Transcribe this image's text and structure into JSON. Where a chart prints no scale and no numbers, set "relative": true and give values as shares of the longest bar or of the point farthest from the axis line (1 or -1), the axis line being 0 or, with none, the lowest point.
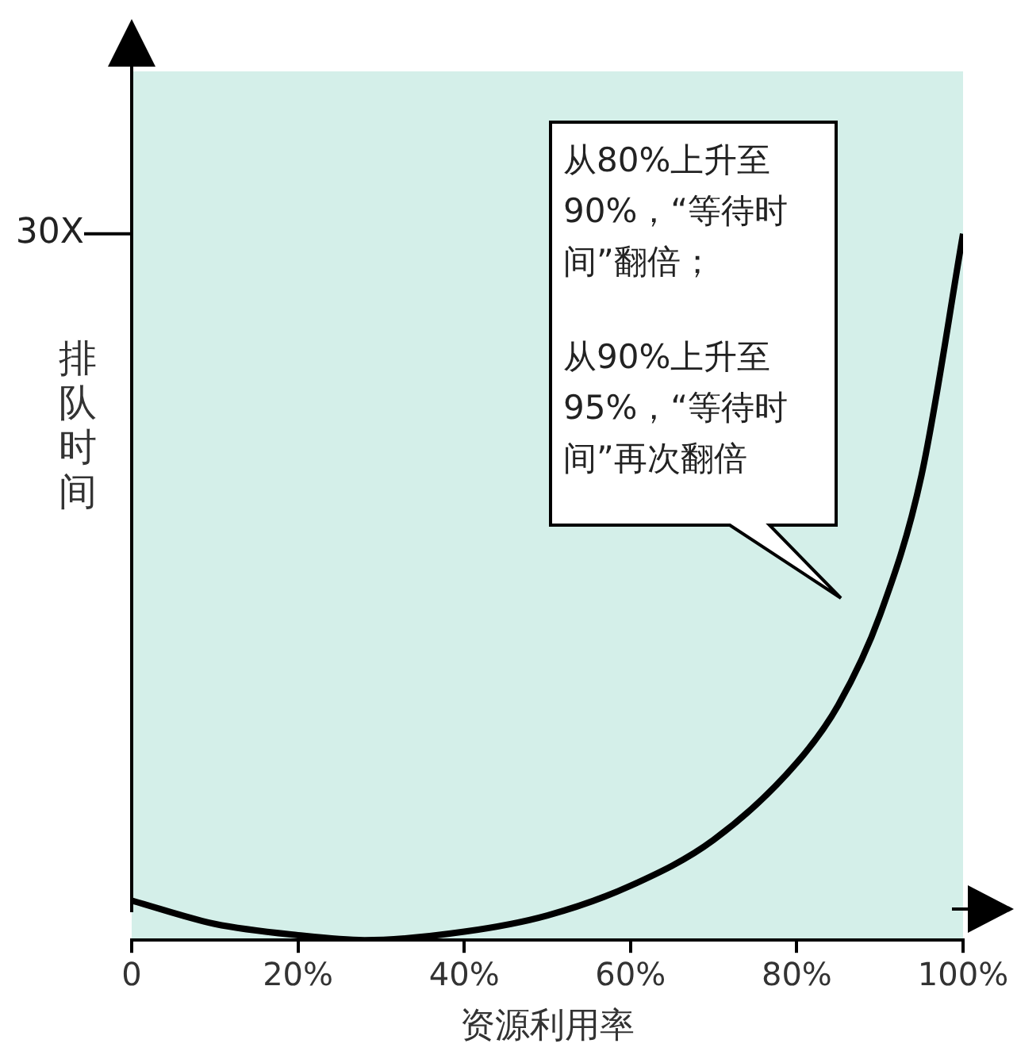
{
  "chart_data": {
    "type": "line",
    "xlabel": "资源利用率",
    "ylabel": "排队时间",
    "relative": true,
    "x": [
      0,
      10,
      20,
      28,
      40,
      50,
      60,
      70,
      80,
      85,
      90,
      95,
      100
    ],
    "series": [
      {
        "color": "#000000",
        "values": [
          0.056,
          0.023,
          0.007,
          0,
          0.012,
          0.035,
          0.077,
          0.142,
          0.251,
          0.333,
          0.46,
          0.658,
          1
        ]
      }
    ],
    "xlim": [
      0,
      100
    ],
    "xticks": [
      {
        "value": 0,
        "label": "0"
      },
      {
        "value": 20,
        "label": "20%"
      },
      {
        "value": 40,
        "label": "40%"
      },
      {
        "value": 60,
        "label": "60%"
      },
      {
        "value": 80,
        "label": "80%"
      },
      {
        "value": 100,
        "label": "100%"
      }
    ],
    "annotations": [
      "30X",
      "从80%上升至90%，“等待时间”翻倍；",
      "从90%上升至95%，“等待时间”再次翻倍"
    ],
    "grid": false,
    "legend": false,
    "marker": "none",
    "line_style": "solid"
  }
}
